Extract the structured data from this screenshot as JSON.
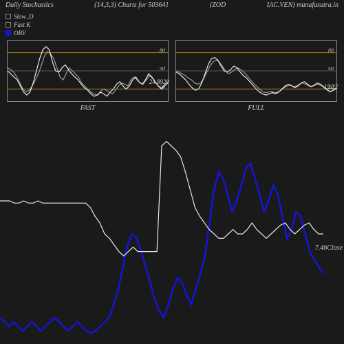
{
  "header": {
    "title": "Daily Stochastics",
    "params": "(14,3,3) Charts for 503641",
    "symbol": "(ZOD",
    "right": "IAC.VEN) munafasutra.in"
  },
  "legend": {
    "slow_d": "Slow_D",
    "fast_k": "Fast K",
    "obv": "OBV"
  },
  "colors": {
    "bg": "#1a1a1a",
    "border": "#888888",
    "line_white": "#e8e8e8",
    "line_gray": "#9a9a9a",
    "line_blue": "#1414d8",
    "grid_orange": "#b8860b",
    "grid_gray": "#555555",
    "text": "#cccccc"
  },
  "panels": {
    "fast": {
      "label": "FAST",
      "value_label": "24.8920",
      "grid_levels": [
        20,
        50,
        80
      ],
      "labels": [
        "20",
        "50",
        "80"
      ],
      "slow_d": [
        55,
        52,
        48,
        40,
        30,
        20,
        15,
        18,
        25,
        35,
        45,
        60,
        75,
        82,
        78,
        70,
        55,
        40,
        35,
        45,
        55,
        50,
        45,
        40,
        30,
        25,
        20,
        15,
        12,
        10,
        15,
        20,
        18,
        15,
        12,
        18,
        25,
        30,
        28,
        25,
        35,
        40,
        35,
        30,
        28,
        35,
        42,
        38,
        30,
        25,
        22,
        28,
        32
      ],
      "fast_k": [
        50,
        45,
        40,
        35,
        25,
        15,
        10,
        15,
        30,
        50,
        70,
        85,
        90,
        85,
        65,
        50,
        48,
        55,
        60,
        52,
        45,
        40,
        35,
        28,
        22,
        18,
        12,
        8,
        10,
        15,
        12,
        8,
        15,
        20,
        28,
        32,
        25,
        20,
        25,
        35,
        40,
        32,
        28,
        35,
        45,
        40,
        32,
        25,
        20,
        25,
        30
      ]
    },
    "full": {
      "label": "FULL",
      "value_label": "15.22",
      "grid_levels": [
        20,
        50,
        80
      ],
      "labels": [
        "20",
        "50",
        "80"
      ],
      "slow_d": [
        50,
        48,
        45,
        42,
        38,
        35,
        30,
        28,
        30,
        38,
        48,
        58,
        65,
        68,
        65,
        58,
        50,
        45,
        48,
        52,
        55,
        52,
        48,
        42,
        36,
        30,
        25,
        20,
        16,
        14,
        15,
        16,
        14,
        15,
        18,
        22,
        25,
        26,
        24,
        25,
        28,
        30,
        28,
        25,
        24,
        26,
        28,
        26,
        22,
        18,
        16,
        18,
        20
      ],
      "fast_k": [
        48,
        45,
        40,
        35,
        28,
        22,
        18,
        20,
        30,
        45,
        60,
        70,
        72,
        68,
        58,
        50,
        48,
        52,
        58,
        55,
        48,
        42,
        38,
        32,
        26,
        20,
        15,
        12,
        10,
        12,
        14,
        12,
        15,
        20,
        25,
        28,
        26,
        22,
        25,
        30,
        32,
        28,
        24,
        26,
        30,
        28,
        24,
        20,
        15,
        18,
        22
      ]
    }
  },
  "main": {
    "close_value": "7.46",
    "close_label": "Close",
    "white_line": [
      65,
      65,
      65,
      64,
      64,
      65,
      64,
      64,
      65,
      64,
      64,
      64,
      64,
      64,
      64,
      64,
      64,
      64,
      64,
      62,
      58,
      55,
      50,
      48,
      45,
      42,
      40,
      42,
      44,
      42,
      42,
      42,
      42,
      42,
      90,
      92,
      90,
      88,
      85,
      78,
      70,
      62,
      58,
      55,
      52,
      50,
      48,
      48,
      50,
      52,
      50,
      50,
      52,
      55,
      52,
      50,
      48,
      50,
      52,
      54,
      55,
      52,
      50,
      52,
      54,
      55,
      52,
      50,
      50
    ],
    "blue_line": [
      12,
      10,
      8,
      10,
      8,
      6,
      8,
      10,
      8,
      6,
      8,
      10,
      12,
      10,
      8,
      6,
      8,
      10,
      8,
      6,
      5,
      6,
      8,
      10,
      12,
      18,
      25,
      35,
      45,
      50,
      48,
      42,
      35,
      28,
      20,
      15,
      12,
      18,
      25,
      30,
      28,
      22,
      18,
      25,
      32,
      40,
      55,
      70,
      78,
      75,
      68,
      60,
      65,
      72,
      80,
      82,
      75,
      68,
      60,
      65,
      72,
      68,
      58,
      48,
      52,
      60,
      58,
      50,
      42,
      38,
      35,
      32
    ]
  }
}
